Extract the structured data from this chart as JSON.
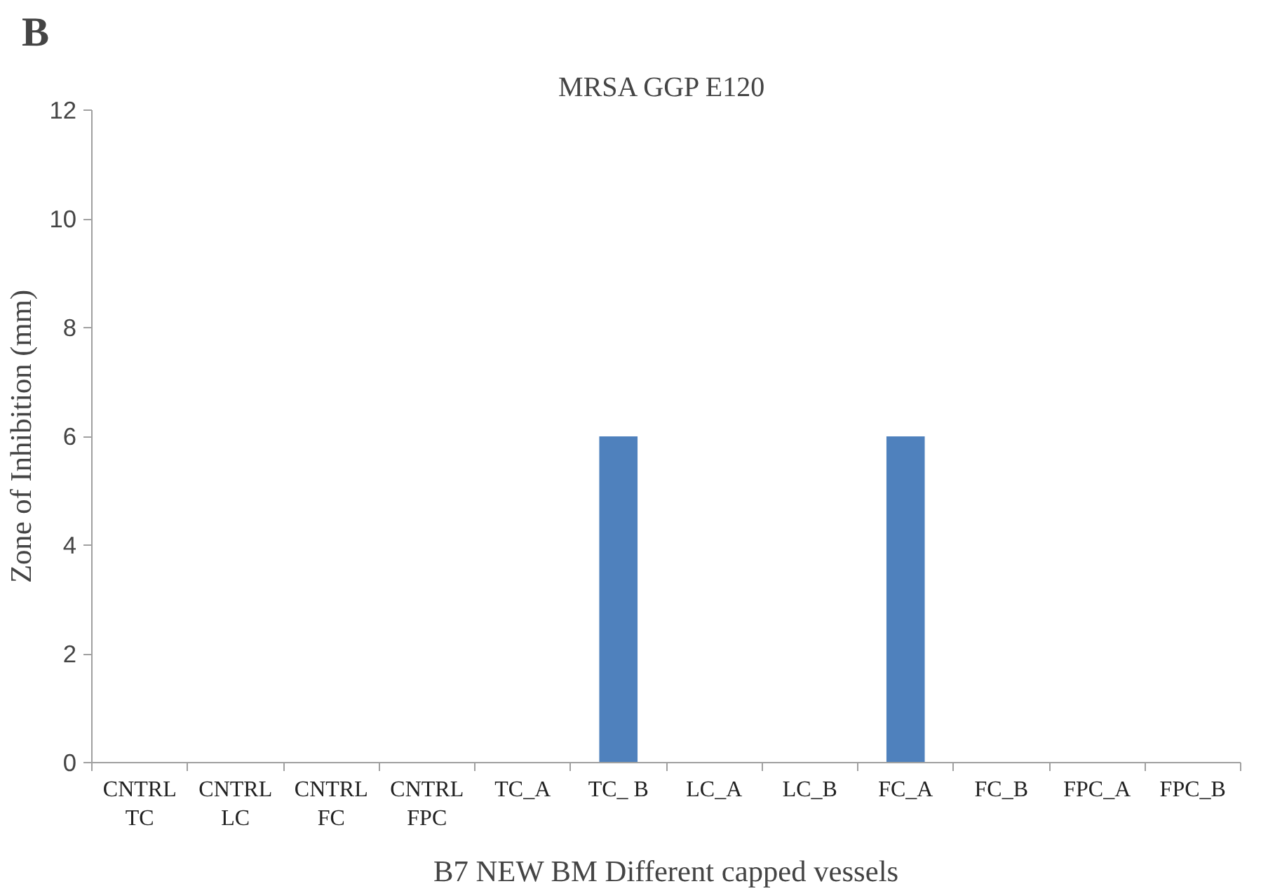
{
  "chart_data": {
    "type": "bar",
    "title": "MRSA  GGP E120",
    "xlabel": "B7 NEW BM Different capped vessels",
    "ylabel": "Zone of Inhibition (mm)",
    "annotations": [
      "B"
    ],
    "categories": [
      "CNTRL\nTC",
      "CNTRL\nLC",
      "CNTRL\nFC",
      "CNTRL\nFPC",
      "TC_A",
      "TC_ B",
      "LC_A",
      "LC_B",
      "FC_A",
      "FC_B",
      "FPC_A",
      "FPC_B"
    ],
    "values": [
      0,
      0,
      0,
      0,
      0,
      6,
      0,
      0,
      6,
      0,
      0,
      0
    ],
    "color": "#4f81bd",
    "ylim": [
      0,
      12
    ],
    "yticks": [
      0,
      2,
      4,
      6,
      8,
      10,
      12
    ],
    "grid": false
  }
}
